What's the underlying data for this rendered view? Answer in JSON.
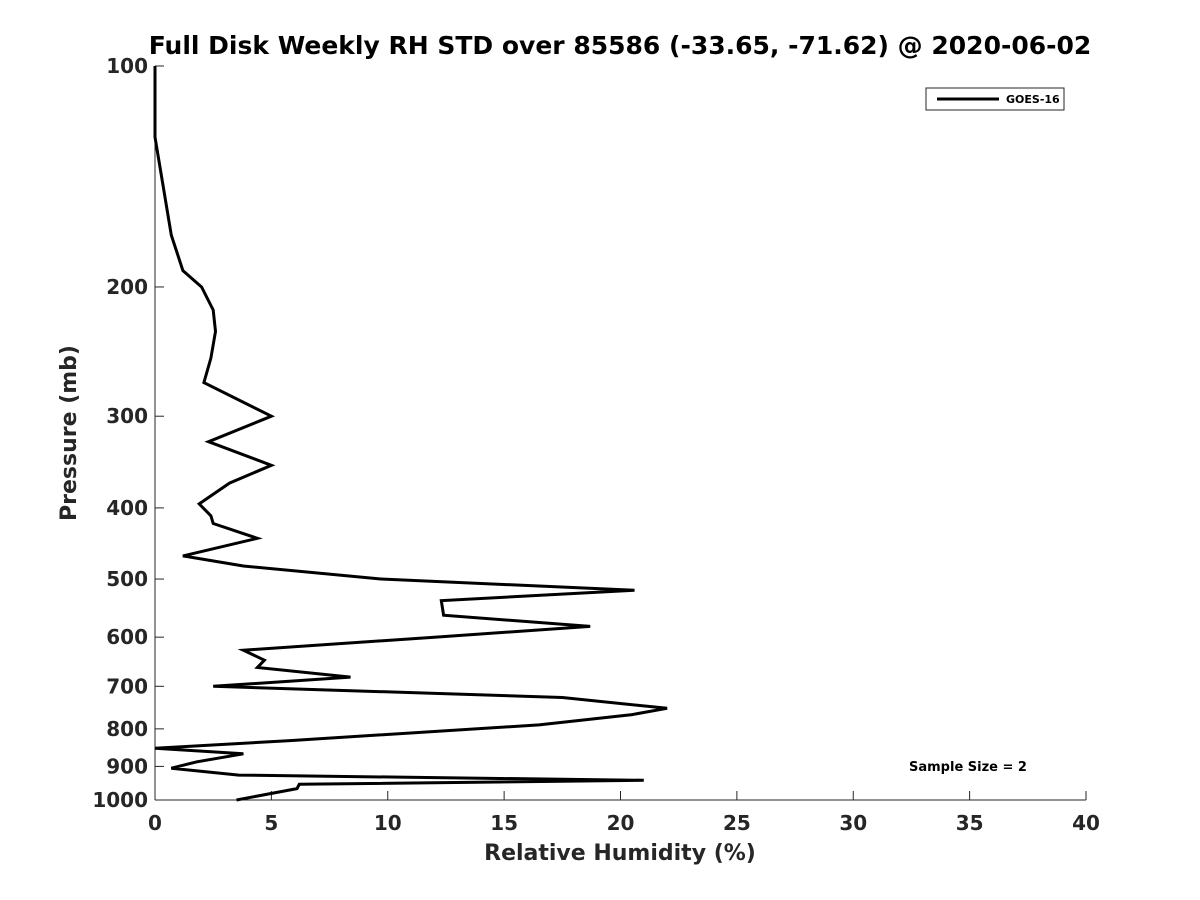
{
  "chart_data": {
    "type": "line",
    "title": "Full Disk Weekly RH STD over 85586 (-33.65, -71.62) @ 2020-06-02",
    "xlabel": "Relative Humidity (%)",
    "ylabel": "Pressure (mb)",
    "xlim": [
      0,
      40
    ],
    "ylim": [
      100,
      1000
    ],
    "yscale": "log",
    "y_reversed": true,
    "x_ticks": [
      "0",
      "5",
      "10",
      "15",
      "20",
      "25",
      "30",
      "35",
      "40"
    ],
    "y_ticks": [
      "100",
      "200",
      "300",
      "400",
      "500",
      "600",
      "700",
      "800",
      "900",
      "1000"
    ],
    "grid": false,
    "legend_position": "top-right",
    "annotation": "Sample Size = 2",
    "line_color": "#000000",
    "series": [
      {
        "name": "GOES-16",
        "points": [
          [
            0.0,
            100
          ],
          [
            0.0,
            125
          ],
          [
            0.7,
            170
          ],
          [
            1.2,
            190
          ],
          [
            2.0,
            200
          ],
          [
            2.5,
            215
          ],
          [
            2.6,
            230
          ],
          [
            2.4,
            250
          ],
          [
            2.1,
            270
          ],
          [
            5.0,
            300
          ],
          [
            2.3,
            325
          ],
          [
            5.0,
            350
          ],
          [
            3.2,
            370
          ],
          [
            1.9,
            395
          ],
          [
            2.4,
            410
          ],
          [
            2.5,
            420
          ],
          [
            4.4,
            440
          ],
          [
            1.2,
            465
          ],
          [
            3.8,
            480
          ],
          [
            9.7,
            500
          ],
          [
            20.6,
            518
          ],
          [
            12.3,
            535
          ],
          [
            12.4,
            560
          ],
          [
            18.7,
            580
          ],
          [
            12.0,
            600
          ],
          [
            3.8,
            625
          ],
          [
            4.7,
            645
          ],
          [
            4.4,
            660
          ],
          [
            8.4,
            680
          ],
          [
            2.5,
            700
          ],
          [
            17.5,
            725
          ],
          [
            22.0,
            750
          ],
          [
            20.5,
            765
          ],
          [
            16.5,
            790
          ],
          [
            5.8,
            830
          ],
          [
            0.0,
            850
          ],
          [
            3.8,
            865
          ],
          [
            1.8,
            887
          ],
          [
            0.7,
            905
          ],
          [
            3.6,
            925
          ],
          [
            21.0,
            940
          ],
          [
            6.2,
            952
          ],
          [
            6.1,
            965
          ],
          [
            3.5,
            1000
          ]
        ]
      }
    ]
  }
}
